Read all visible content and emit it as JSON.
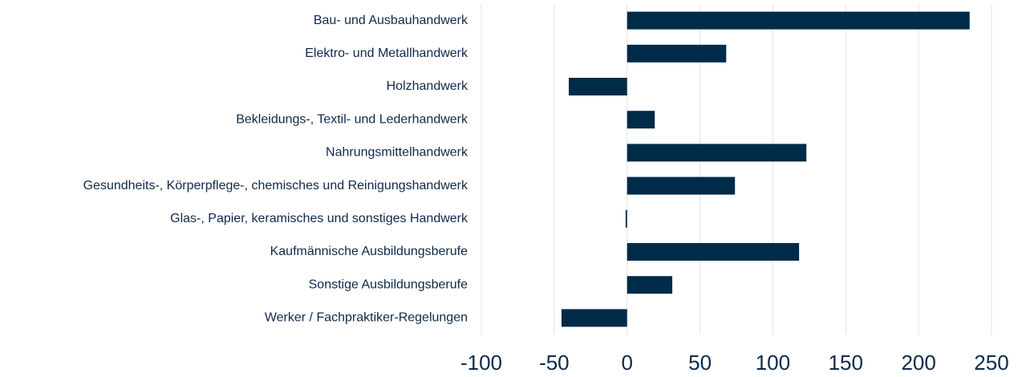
{
  "chart_data": {
    "type": "bar",
    "orientation": "horizontal",
    "categories": [
      "Bau- und Ausbauhandwerk",
      "Elektro- und Metallhandwerk",
      "Holzhandwerk",
      "Bekleidungs-, Textil- und Lederhandwerk",
      "Nahrungsmittelhandwerk",
      "Gesundheits-, Körperpflege-, chemisches und Reinigungshandwerk",
      "Glas-, Papier, keramisches und sonstiges Handwerk",
      "Kaufmännische Ausbildungsberufe",
      "Sonstige Ausbildungsberufe",
      "Werker / Fachpraktiker-Regelungen"
    ],
    "values": [
      235,
      68,
      -40,
      19,
      123,
      74,
      -1,
      118,
      31,
      -45
    ],
    "color": "#002b49",
    "xlim": [
      -100,
      250
    ],
    "xticks": [
      -100,
      -50,
      0,
      50,
      100,
      150,
      200,
      250
    ],
    "grid": true
  }
}
